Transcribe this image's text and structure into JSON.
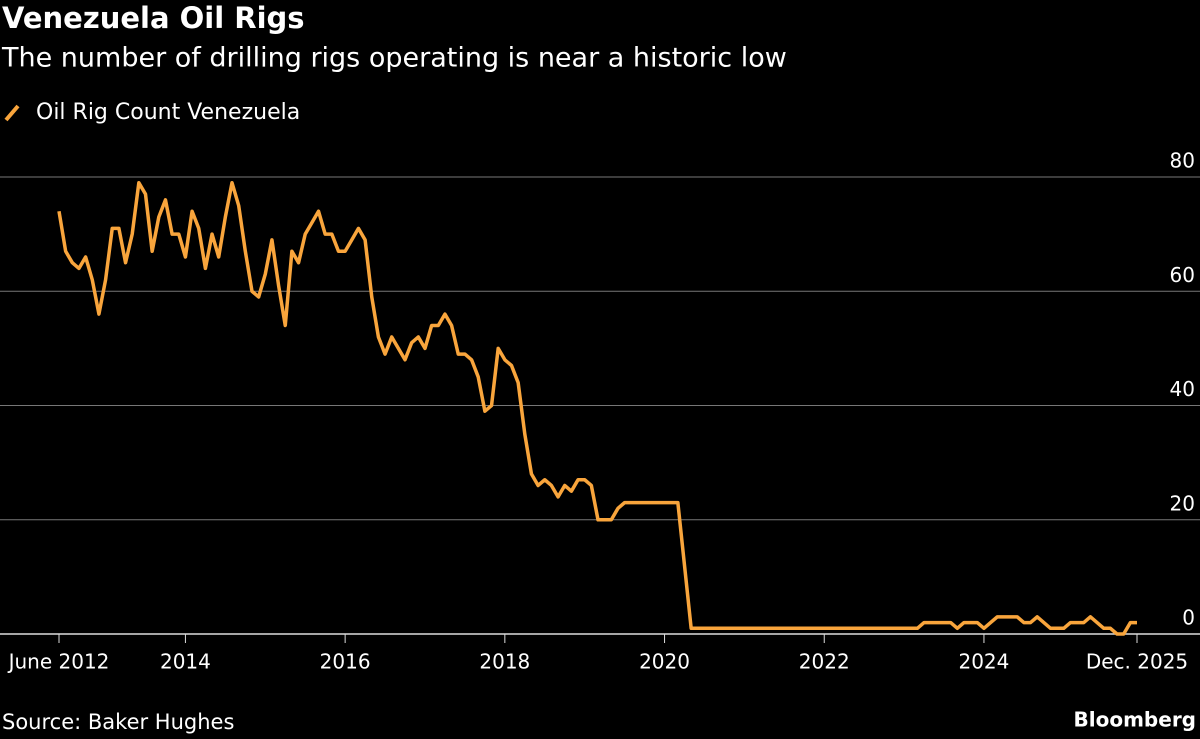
{
  "chart_data": {
    "type": "line",
    "title": "Venezuela Oil Rigs",
    "subtitle": "The number of drilling rigs operating is near a historic low",
    "source": "Source: Baker Hughes",
    "credit": "Bloomberg",
    "categories": [
      "June 2012",
      null,
      null,
      null,
      null,
      null,
      null,
      null,
      null,
      null,
      null,
      null,
      null,
      null,
      null,
      null,
      null,
      null,
      null,
      "2014",
      null,
      null,
      null,
      null,
      null,
      null,
      null,
      null,
      null,
      null,
      null,
      null,
      null,
      null,
      null,
      null,
      null,
      null,
      null,
      null,
      null,
      null,
      null,
      "2016",
      null,
      null,
      null,
      null,
      null,
      null,
      null,
      null,
      null,
      null,
      null,
      null,
      null,
      null,
      null,
      null,
      null,
      null,
      null,
      null,
      null,
      null,
      null,
      "2018",
      null,
      null,
      null,
      null,
      null,
      null,
      null,
      null,
      null,
      null,
      null,
      null,
      null,
      null,
      null,
      null,
      null,
      null,
      null,
      null,
      null,
      null,
      null,
      "2020",
      null,
      null,
      null,
      null,
      null,
      null,
      null,
      null,
      null,
      null,
      null,
      null,
      null,
      null,
      null,
      null,
      null,
      null,
      null,
      null,
      null,
      null,
      null,
      "2022",
      null,
      null,
      null,
      null,
      null,
      null,
      null,
      null,
      null,
      null,
      null,
      null,
      null,
      null,
      null,
      null,
      null,
      null,
      null,
      null,
      null,
      null,
      null,
      "2024",
      null,
      null,
      null,
      null,
      null,
      null,
      null,
      null,
      null,
      null,
      null,
      null,
      null,
      null,
      null,
      null,
      null,
      null,
      null,
      null,
      null,
      null,
      "Dec. 2025"
    ],
    "series": [
      {
        "name": "Oil Rig Count Venezuela",
        "color": "#f9a53c",
        "values": [
          74,
          67,
          65,
          64,
          66,
          62,
          56,
          62,
          71,
          71,
          65,
          70,
          79,
          77,
          67,
          73,
          76,
          70,
          70,
          66,
          74,
          71,
          64,
          70,
          66,
          73,
          79,
          75,
          67,
          60,
          59,
          63,
          69,
          61,
          54,
          67,
          65,
          70,
          72,
          74,
          70,
          70,
          67,
          67,
          69,
          71,
          69,
          59,
          52,
          49,
          52,
          50,
          48,
          51,
          52,
          50,
          54,
          54,
          56,
          54,
          49,
          49,
          48,
          45,
          39,
          40,
          50,
          48,
          47,
          44,
          35,
          28,
          26,
          27,
          26,
          24,
          26,
          25,
          27,
          27,
          26,
          20,
          20,
          20,
          22,
          23,
          23,
          23,
          23,
          23,
          23,
          23,
          23,
          23,
          12,
          1,
          1,
          1,
          1,
          1,
          1,
          1,
          1,
          1,
          1,
          1,
          1,
          1,
          1,
          1,
          1,
          1,
          1,
          1,
          1,
          1,
          1,
          1,
          1,
          1,
          1,
          1,
          1,
          1,
          1,
          1,
          1,
          1,
          1,
          1,
          2,
          2,
          2,
          2,
          2,
          1,
          2,
          2,
          2,
          1,
          2,
          3,
          3,
          3,
          3,
          2,
          2,
          3,
          2,
          1,
          1,
          1,
          2,
          2,
          2,
          3,
          2,
          1,
          1,
          0,
          0,
          2,
          2
        ]
      }
    ],
    "ylim": [
      0,
      80
    ],
    "yticks": [
      0,
      20,
      40,
      60,
      80
    ],
    "grid": true
  }
}
